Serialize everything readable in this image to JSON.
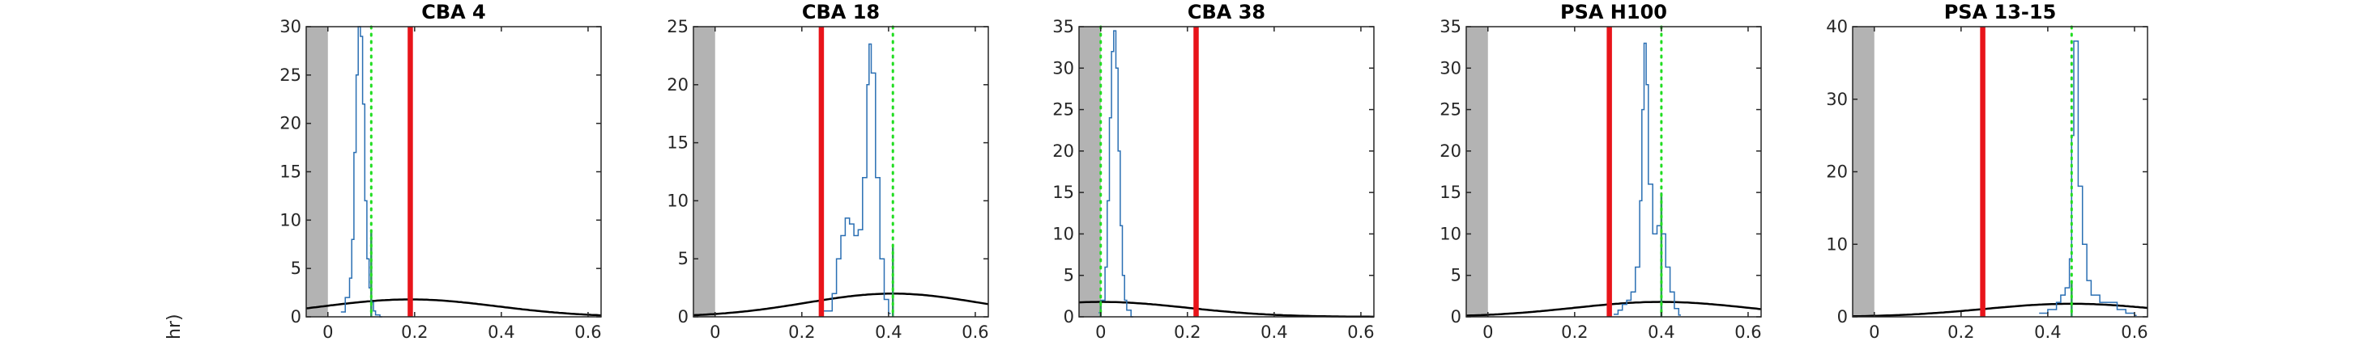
{
  "figure": {
    "ylabel_fragment": "hr)"
  },
  "chart_data": [
    {
      "type": "histogram",
      "title": "CBA 4",
      "xlim": [
        -0.05,
        0.63
      ],
      "ylim": [
        0,
        30
      ],
      "xticks": [
        0,
        0.2,
        0.4,
        0.6
      ],
      "xtick_labels": [
        "0",
        "0.2",
        "0.4",
        "0.6"
      ],
      "yticks": [
        0,
        5,
        10,
        15,
        20,
        25,
        30
      ],
      "ytick_labels": [
        "0",
        "5",
        "10",
        "15",
        "20",
        "25",
        "30"
      ],
      "shaded_region": [
        -0.05,
        0.0
      ],
      "red_line_x": 0.19,
      "green_dotted_x": 0.1,
      "green_spike": {
        "x": 0.1,
        "height": 9
      },
      "normal_curve": {
        "mean": 0.19,
        "sd": 0.2,
        "peak": 1.8
      },
      "histogram": {
        "x": [
          0.03,
          0.04,
          0.05,
          0.055,
          0.06,
          0.065,
          0.07,
          0.075,
          0.08,
          0.085,
          0.09,
          0.095,
          0.1,
          0.105,
          0.11,
          0.12
        ],
        "y": [
          0.5,
          2,
          4,
          8,
          17,
          25,
          30,
          29,
          22,
          12,
          6,
          3,
          1.5,
          0.6,
          0.2,
          0
        ]
      }
    },
    {
      "type": "histogram",
      "title": "CBA 18",
      "xlim": [
        -0.05,
        0.63
      ],
      "ylim": [
        0,
        25
      ],
      "xticks": [
        0,
        0.2,
        0.4,
        0.6
      ],
      "xtick_labels": [
        "0",
        "0.2",
        "0.4",
        "0.6"
      ],
      "yticks": [
        0,
        5,
        10,
        15,
        20,
        25
      ],
      "ytick_labels": [
        "0",
        "5",
        "10",
        "15",
        "20",
        "25"
      ],
      "shaded_region": [
        -0.05,
        0.0
      ],
      "red_line_x": 0.245,
      "green_dotted_x": 0.41,
      "green_spike": {
        "x": 0.41,
        "height": 6
      },
      "normal_curve": {
        "mean": 0.41,
        "sd": 0.2,
        "peak": 2.0
      },
      "histogram": {
        "x": [
          0.25,
          0.27,
          0.28,
          0.29,
          0.3,
          0.31,
          0.32,
          0.33,
          0.34,
          0.35,
          0.355,
          0.36,
          0.37,
          0.38,
          0.39,
          0.4
        ],
        "y": [
          0.5,
          2,
          5,
          7,
          8.5,
          8,
          7,
          7.5,
          12,
          20,
          23.5,
          21,
          12,
          5,
          1.5,
          0.3
        ]
      }
    },
    {
      "type": "histogram",
      "title": "CBA 38",
      "xlim": [
        -0.05,
        0.63
      ],
      "ylim": [
        0,
        35
      ],
      "xticks": [
        0,
        0.2,
        0.4,
        0.6
      ],
      "xtick_labels": [
        "0",
        "0.2",
        "0.4",
        "0.6"
      ],
      "yticks": [
        0,
        5,
        10,
        15,
        20,
        25,
        30,
        35
      ],
      "ytick_labels": [
        "0",
        "5",
        "10",
        "15",
        "20",
        "25",
        "30",
        "35"
      ],
      "shaded_region": [
        -0.05,
        0.0
      ],
      "red_line_x": 0.22,
      "green_dotted_x": 0.0,
      "green_spike": {
        "x": 0.0,
        "height": 2
      },
      "normal_curve": {
        "mean": 0.0,
        "sd": 0.2,
        "peak": 1.8
      },
      "histogram": {
        "x": [
          -0.005,
          0.0,
          0.01,
          0.015,
          0.02,
          0.025,
          0.03,
          0.035,
          0.04,
          0.045,
          0.05,
          0.055,
          0.06,
          0.07
        ],
        "y": [
          0.5,
          2,
          6,
          14,
          24,
          32,
          34.5,
          30,
          20,
          11,
          5,
          2,
          0.8,
          0
        ]
      }
    },
    {
      "type": "histogram",
      "title": "PSA H100",
      "xlim": [
        -0.05,
        0.63
      ],
      "ylim": [
        0,
        35
      ],
      "xticks": [
        0,
        0.2,
        0.4,
        0.6
      ],
      "xtick_labels": [
        "0",
        "0.2",
        "0.4",
        "0.6"
      ],
      "yticks": [
        0,
        5,
        10,
        15,
        20,
        25,
        30,
        35
      ],
      "ytick_labels": [
        "0",
        "5",
        "10",
        "15",
        "20",
        "25",
        "30",
        "35"
      ],
      "shaded_region": [
        -0.05,
        0.0
      ],
      "red_line_x": 0.28,
      "green_dotted_x": 0.4,
      "green_spike": {
        "x": 0.4,
        "height": 15
      },
      "normal_curve": {
        "mean": 0.4,
        "sd": 0.2,
        "peak": 1.8
      },
      "histogram": {
        "x": [
          0.29,
          0.3,
          0.31,
          0.32,
          0.33,
          0.34,
          0.35,
          0.355,
          0.36,
          0.365,
          0.37,
          0.38,
          0.39,
          0.4,
          0.41,
          0.42,
          0.43,
          0.44
        ],
        "y": [
          0.3,
          0.8,
          1.5,
          2,
          3,
          6,
          14,
          25,
          33,
          28,
          16,
          10,
          11,
          10,
          6,
          3,
          1,
          0.2
        ]
      }
    },
    {
      "type": "histogram",
      "title": "PSA 13-15",
      "xlim": [
        -0.05,
        0.63
      ],
      "ylim": [
        0,
        40
      ],
      "xticks": [
        0,
        0.2,
        0.4,
        0.6
      ],
      "xtick_labels": [
        "0",
        "0.2",
        "0.4",
        "0.6"
      ],
      "yticks": [
        0,
        10,
        20,
        30,
        40
      ],
      "ytick_labels": [
        "0",
        "10",
        "20",
        "30",
        "40"
      ],
      "shaded_region": [
        -0.05,
        0.0
      ],
      "red_line_x": 0.25,
      "green_dotted_x": 0.455,
      "green_spike": {
        "x": 0.455,
        "height": 5
      },
      "normal_curve": {
        "mean": 0.455,
        "sd": 0.2,
        "peak": 1.8
      },
      "histogram": {
        "x": [
          0.38,
          0.4,
          0.42,
          0.43,
          0.44,
          0.45,
          0.455,
          0.46,
          0.47,
          0.48,
          0.49,
          0.5,
          0.52,
          0.54,
          0.56,
          0.58,
          0.6
        ],
        "y": [
          0.5,
          1,
          2,
          3,
          4,
          8,
          25,
          38,
          18,
          10,
          5,
          3,
          2,
          2,
          1,
          0.5,
          0.2
        ]
      }
    }
  ]
}
